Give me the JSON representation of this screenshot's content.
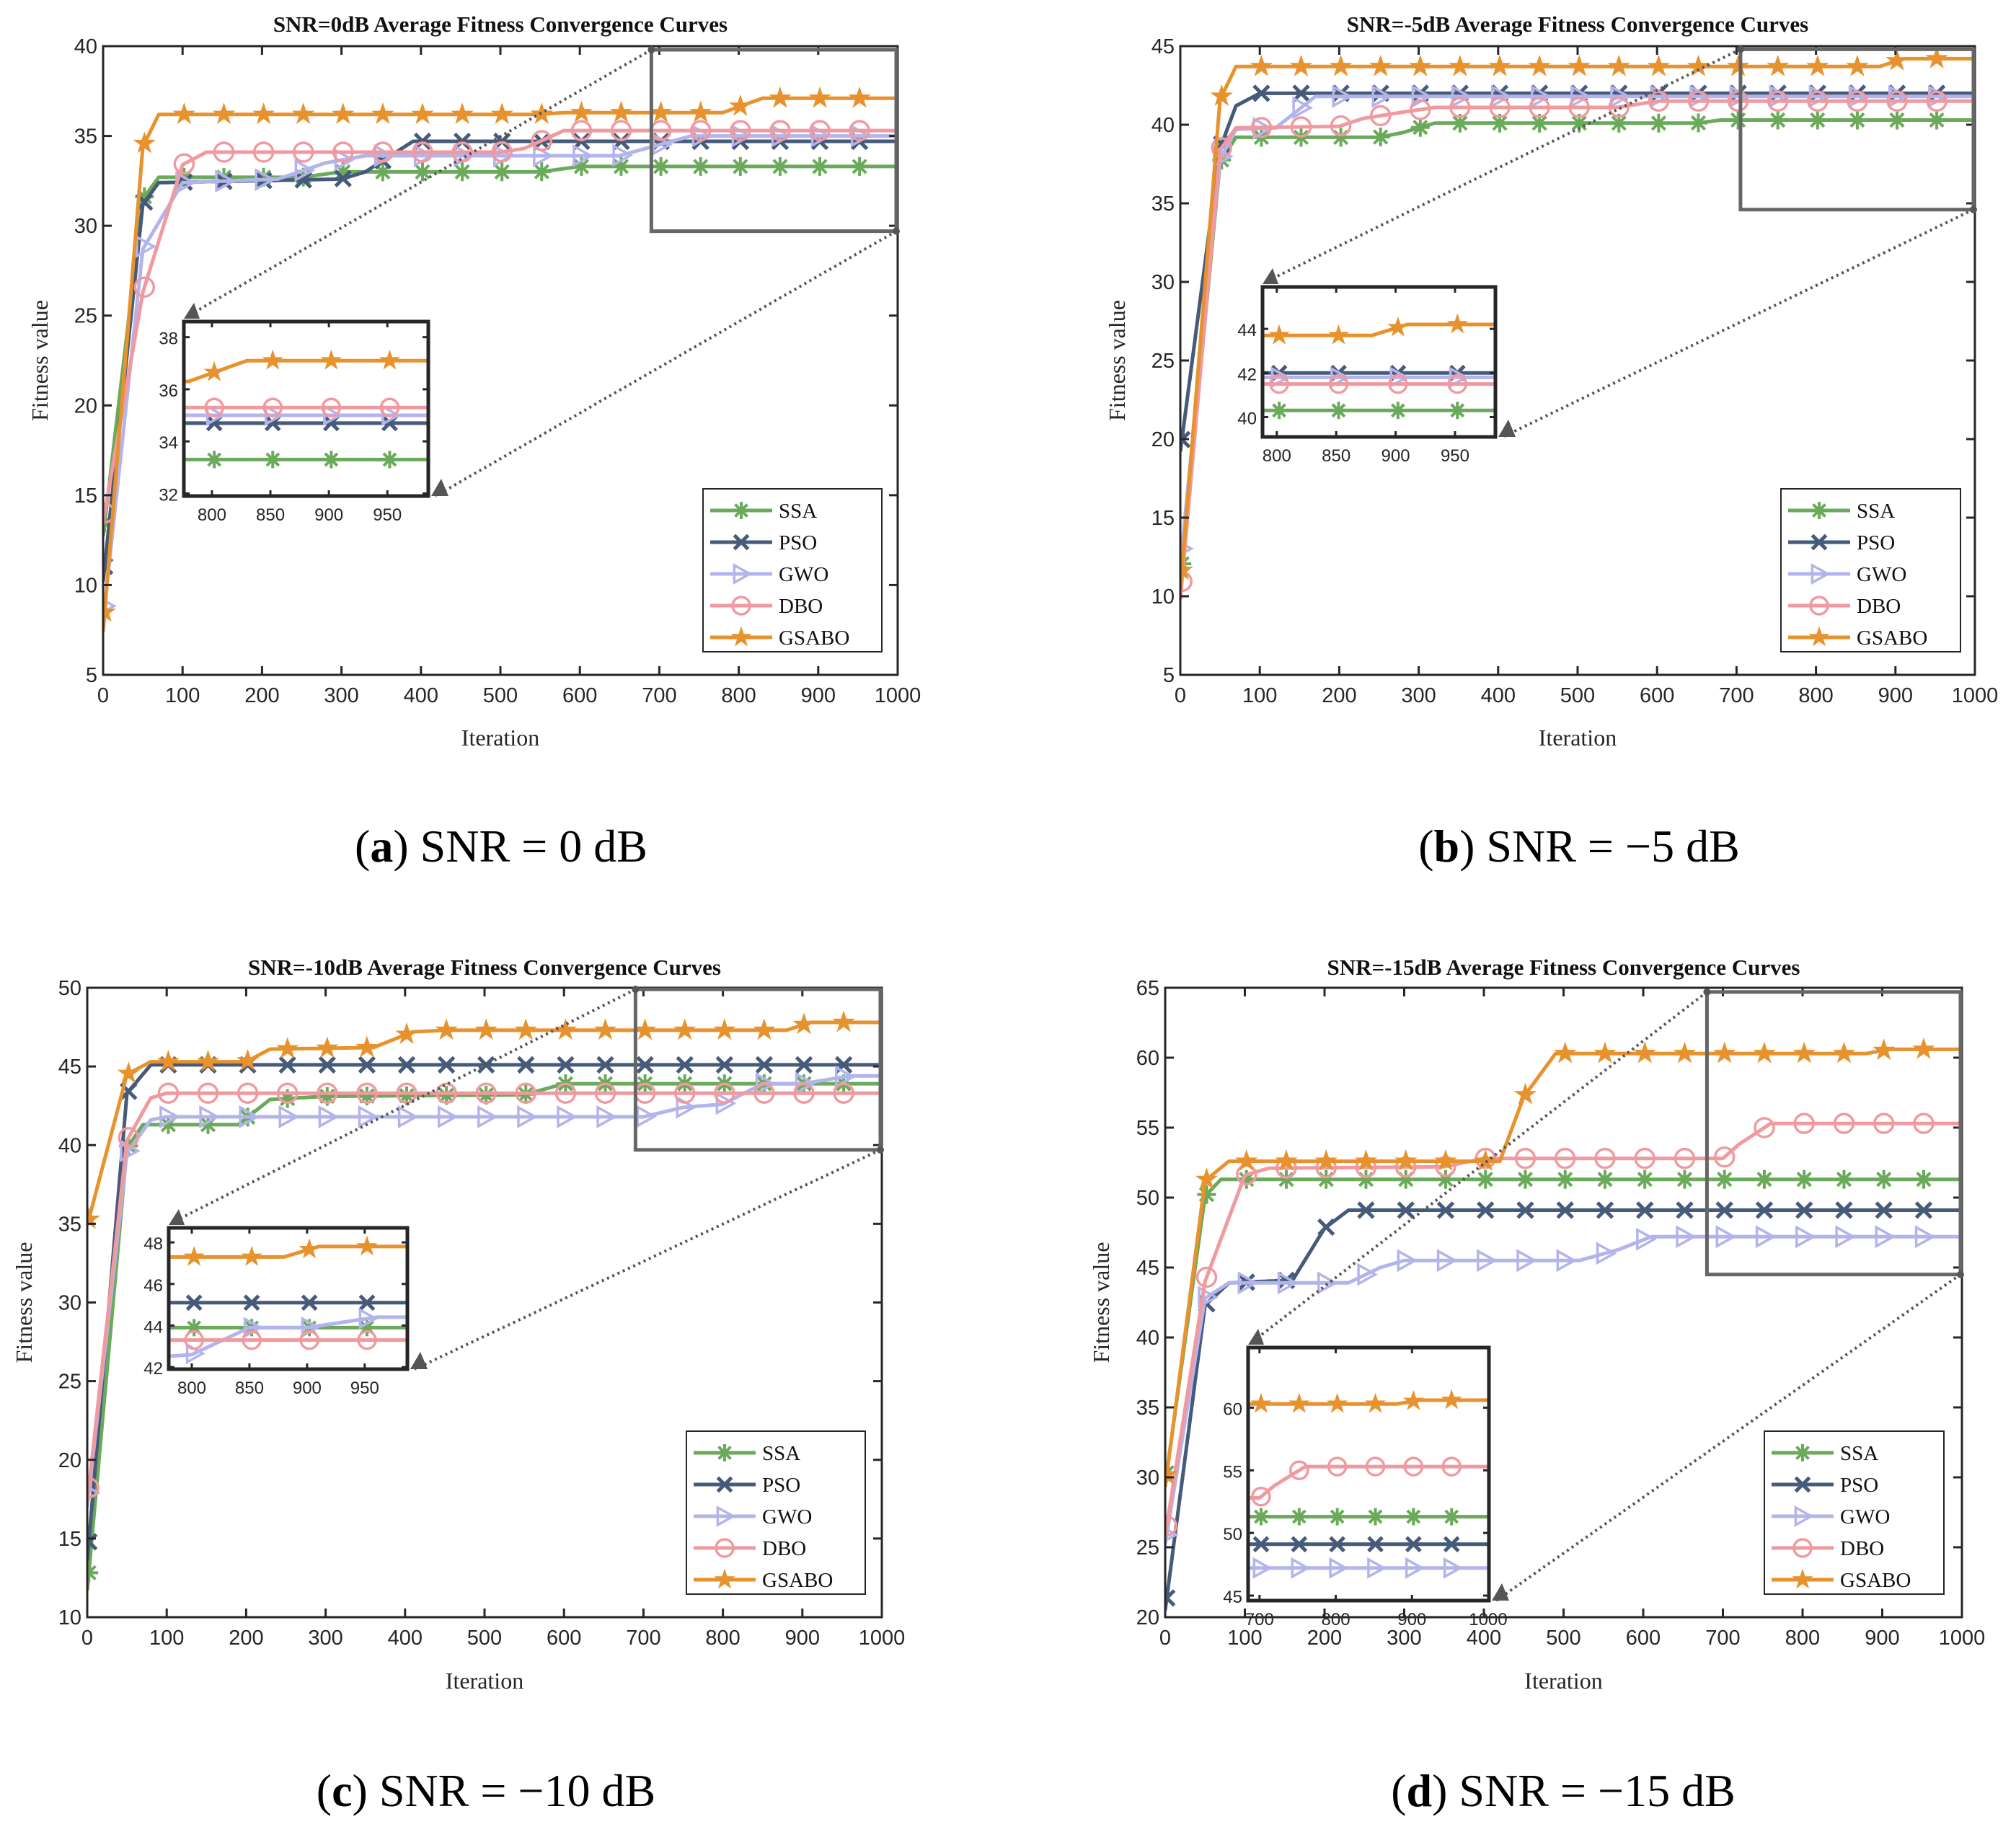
{
  "chart_data": [
    {
      "type": "line",
      "title": "SNR=0dB Average Fitness Convergence Curves",
      "xlabel": "Iteration",
      "ylabel": "Fitness value",
      "xlim": [
        0,
        1000
      ],
      "ylim": [
        5,
        40
      ],
      "xticks": [
        0,
        100,
        200,
        300,
        400,
        500,
        600,
        700,
        800,
        900,
        1000
      ],
      "yticks": [
        5,
        10,
        15,
        20,
        25,
        30,
        35,
        40
      ],
      "legend": "bottom-right",
      "caption_label": "a",
      "caption_text": "SNR = 0 dB",
      "zoom_box": {
        "xlim": [
          690,
          1000
        ],
        "ylim": [
          29.7,
          39.8
        ]
      },
      "inset": {
        "xlim": [
          776,
          985
        ],
        "ylim": [
          31.9,
          38.6
        ],
        "xticks": [
          800,
          850,
          900,
          950
        ],
        "yticks": [
          32,
          34,
          36,
          38
        ]
      },
      "series": [
        {
          "name": "SSA",
          "points": [
            [
              0,
              12.7
            ],
            [
              50,
              31.5
            ],
            [
              70,
              32.7
            ],
            [
              250,
              32.7
            ],
            [
              300,
              33.0
            ],
            [
              550,
              33.0
            ],
            [
              600,
              33.3
            ],
            [
              1000,
              33.3
            ]
          ]
        },
        {
          "name": "PSO",
          "points": [
            [
              0,
              10.2
            ],
            [
              50,
              31.2
            ],
            [
              70,
              32.4
            ],
            [
              300,
              32.6
            ],
            [
              330,
              33.0
            ],
            [
              390,
              34.7
            ],
            [
              1000,
              34.7
            ]
          ]
        },
        {
          "name": "GWO",
          "points": [
            [
              0,
              8.0
            ],
            [
              50,
              28.7
            ],
            [
              100,
              32.4
            ],
            [
              220,
              32.6
            ],
            [
              280,
              33.5
            ],
            [
              330,
              33.9
            ],
            [
              650,
              33.9
            ],
            [
              740,
              35.0
            ],
            [
              1000,
              35.0
            ]
          ]
        },
        {
          "name": "DBO",
          "points": [
            [
              0,
              13.5
            ],
            [
              50,
              26.3
            ],
            [
              100,
              33.4
            ],
            [
              130,
              34.1
            ],
            [
              500,
              34.1
            ],
            [
              530,
              34.3
            ],
            [
              580,
              35.3
            ],
            [
              1000,
              35.3
            ]
          ]
        },
        {
          "name": "GSABO",
          "points": [
            [
              0,
              7.4
            ],
            [
              50,
              34.4
            ],
            [
              70,
              36.2
            ],
            [
              550,
              36.2
            ],
            [
              580,
              36.3
            ],
            [
              780,
              36.3
            ],
            [
              830,
              37.1
            ],
            [
              1000,
              37.1
            ]
          ]
        }
      ]
    },
    {
      "type": "line",
      "title": "SNR=-5dB Average Fitness Convergence Curves",
      "xlabel": "Iteration",
      "ylabel": "Fitness value",
      "xlim": [
        0,
        1000
      ],
      "ylim": [
        5,
        45
      ],
      "xticks": [
        0,
        100,
        200,
        300,
        400,
        500,
        600,
        700,
        800,
        900,
        1000
      ],
      "yticks": [
        5,
        10,
        15,
        20,
        25,
        30,
        35,
        40,
        45
      ],
      "legend": "bottom-right",
      "caption_label": "b",
      "caption_text": "SNR = −5 dB",
      "zoom_box": {
        "xlim": [
          705,
          1000
        ],
        "ylim": [
          34.6,
          44.8
        ]
      },
      "inset": {
        "xlim": [
          788,
          984
        ],
        "ylim": [
          39.1,
          45.9
        ],
        "xticks": [
          800,
          850,
          900,
          950
        ],
        "yticks": [
          40,
          42,
          44
        ]
      },
      "series": [
        {
          "name": "SSA",
          "points": [
            [
              0,
              11.0
            ],
            [
              50,
              37.6
            ],
            [
              70,
              39.2
            ],
            [
              250,
              39.2
            ],
            [
              280,
              39.5
            ],
            [
              320,
              40.1
            ],
            [
              650,
              40.1
            ],
            [
              680,
              40.3
            ],
            [
              1000,
              40.3
            ]
          ]
        },
        {
          "name": "PSO",
          "points": [
            [
              0,
              19.2
            ],
            [
              50,
              38.5
            ],
            [
              70,
              41.2
            ],
            [
              100,
              42.0
            ],
            [
              1000,
              42.0
            ]
          ]
        },
        {
          "name": "GWO",
          "points": [
            [
              0,
              12.0
            ],
            [
              50,
              37.8
            ],
            [
              70,
              39.7
            ],
            [
              120,
              39.8
            ],
            [
              170,
              41.8
            ],
            [
              1000,
              41.8
            ]
          ]
        },
        {
          "name": "DBO",
          "points": [
            [
              0,
              9.8
            ],
            [
              50,
              38.4
            ],
            [
              70,
              39.8
            ],
            [
              200,
              39.9
            ],
            [
              230,
              40.4
            ],
            [
              280,
              40.8
            ],
            [
              320,
              41.1
            ],
            [
              550,
              41.1
            ],
            [
              600,
              41.5
            ],
            [
              1000,
              41.5
            ]
          ]
        },
        {
          "name": "GSABO",
          "points": [
            [
              0,
              10.4
            ],
            [
              50,
              41.6
            ],
            [
              70,
              43.7
            ],
            [
              880,
              43.7
            ],
            [
              910,
              44.2
            ],
            [
              1000,
              44.2
            ]
          ]
        }
      ]
    },
    {
      "type": "line",
      "title": "SNR=-10dB Average Fitness Convergence Curves",
      "xlabel": "Iteration",
      "ylabel": "Fitness value",
      "xlim": [
        0,
        1000
      ],
      "ylim": [
        10,
        50
      ],
      "xticks": [
        0,
        100,
        200,
        300,
        400,
        500,
        600,
        700,
        800,
        900,
        1000
      ],
      "yticks": [
        10,
        15,
        20,
        25,
        30,
        35,
        40,
        45,
        50
      ],
      "legend": "bottom-right",
      "caption_label": "c",
      "caption_text": "SNR = −10 dB",
      "zoom_box": {
        "xlim": [
          690,
          1000
        ],
        "ylim": [
          39.7,
          49.9
        ]
      },
      "inset": {
        "xlim": [
          780,
          987
        ],
        "ylim": [
          41.9,
          48.7
        ],
        "xticks": [
          800,
          850,
          900,
          950
        ],
        "yticks": [
          42,
          44,
          46,
          48
        ]
      },
      "series": [
        {
          "name": "SSA",
          "points": [
            [
              0,
              11.7
            ],
            [
              50,
              39.8
            ],
            [
              70,
              41.3
            ],
            [
              190,
              41.3
            ],
            [
              230,
              42.9
            ],
            [
              300,
              43.1
            ],
            [
              550,
              43.2
            ],
            [
              600,
              43.9
            ],
            [
              1000,
              43.9
            ]
          ]
        },
        {
          "name": "PSO",
          "points": [
            [
              0,
              13.6
            ],
            [
              50,
              43.3
            ],
            [
              80,
              45.1
            ],
            [
              1000,
              45.1
            ]
          ]
        },
        {
          "name": "GWO",
          "points": [
            [
              0,
              17.0
            ],
            [
              50,
              39.5
            ],
            [
              80,
              41.6
            ],
            [
              100,
              41.8
            ],
            [
              700,
              41.8
            ],
            [
              750,
              42.4
            ],
            [
              800,
              42.6
            ],
            [
              850,
              43.9
            ],
            [
              900,
              43.9
            ],
            [
              960,
              44.4
            ],
            [
              1000,
              44.4
            ]
          ]
        },
        {
          "name": "DBO",
          "points": [
            [
              0,
              17.3
            ],
            [
              50,
              40.3
            ],
            [
              80,
              43.0
            ],
            [
              100,
              43.3
            ],
            [
              1000,
              43.3
            ]
          ]
        },
        {
          "name": "GSABO",
          "points": [
            [
              0,
              34.9
            ],
            [
              50,
              44.5
            ],
            [
              80,
              45.3
            ],
            [
              200,
              45.3
            ],
            [
              230,
              46.1
            ],
            [
              360,
              46.2
            ],
            [
              410,
              47.2
            ],
            [
              450,
              47.3
            ],
            [
              880,
              47.3
            ],
            [
              910,
              47.8
            ],
            [
              1000,
              47.8
            ]
          ]
        }
      ]
    },
    {
      "type": "line",
      "title": "SNR=-15dB Average Fitness Convergence Curves",
      "xlabel": "Iteration",
      "ylabel": "Fitness value",
      "xlim": [
        0,
        1000
      ],
      "ylim": [
        20,
        65
      ],
      "xticks": [
        0,
        100,
        200,
        300,
        400,
        500,
        600,
        700,
        800,
        900,
        1000
      ],
      "yticks": [
        20,
        25,
        30,
        35,
        40,
        45,
        50,
        55,
        60,
        65
      ],
      "legend": "bottom-right",
      "caption_label": "d",
      "caption_text": "SNR = −15 dB",
      "zoom_box": {
        "xlim": [
          680,
          1000
        ],
        "ylim": [
          44.5,
          64.7
        ]
      },
      "inset": {
        "xlim": [
          685,
          1001
        ],
        "ylim": [
          44.6,
          64.8
        ],
        "xticks": [
          700,
          800,
          900,
          1000
        ],
        "yticks": [
          45,
          50,
          55,
          60
        ]
      },
      "series": [
        {
          "name": "SSA",
          "points": [
            [
              0,
              29.5
            ],
            [
              50,
              50.1
            ],
            [
              70,
              51.3
            ],
            [
              1000,
              51.3
            ]
          ]
        },
        {
          "name": "PSO",
          "points": [
            [
              0,
              20.5
            ],
            [
              50,
              42.3
            ],
            [
              80,
              43.9
            ],
            [
              160,
              44.1
            ],
            [
              200,
              47.8
            ],
            [
              230,
              49.1
            ],
            [
              1000,
              49.1
            ]
          ]
        },
        {
          "name": "GWO",
          "points": [
            [
              0,
              25.2
            ],
            [
              50,
              42.8
            ],
            [
              80,
              43.9
            ],
            [
              230,
              43.9
            ],
            [
              270,
              45.0
            ],
            [
              300,
              45.5
            ],
            [
              520,
              45.5
            ],
            [
              570,
              46.3
            ],
            [
              610,
              47.2
            ],
            [
              1000,
              47.2
            ]
          ]
        },
        {
          "name": "DBO",
          "points": [
            [
              0,
              25.8
            ],
            [
              50,
              44.0
            ],
            [
              100,
              51.6
            ],
            [
              130,
              52.1
            ],
            [
              350,
              52.2
            ],
            [
              400,
              52.8
            ],
            [
              700,
              52.8
            ],
            [
              720,
              53.8
            ],
            [
              760,
              55.3
            ],
            [
              1000,
              55.3
            ]
          ]
        },
        {
          "name": "GSABO",
          "points": [
            [
              0,
              29.3
            ],
            [
              50,
              51.2
            ],
            [
              80,
              52.6
            ],
            [
              420,
              52.6
            ],
            [
              450,
              57.2
            ],
            [
              490,
              60.3
            ],
            [
              880,
              60.3
            ],
            [
              910,
              60.6
            ],
            [
              1000,
              60.6
            ]
          ]
        }
      ]
    }
  ],
  "series_style": {
    "SSA": {
      "color": "#6aaa5a",
      "marker": "asterisk"
    },
    "PSO": {
      "color": "#465a7a",
      "marker": "x"
    },
    "GWO": {
      "color": "#b4b4ec",
      "marker": "triangle-right"
    },
    "DBO": {
      "color": "#f09aa0",
      "marker": "circle"
    },
    "GSABO": {
      "color": "#e8922e",
      "marker": "star"
    }
  }
}
